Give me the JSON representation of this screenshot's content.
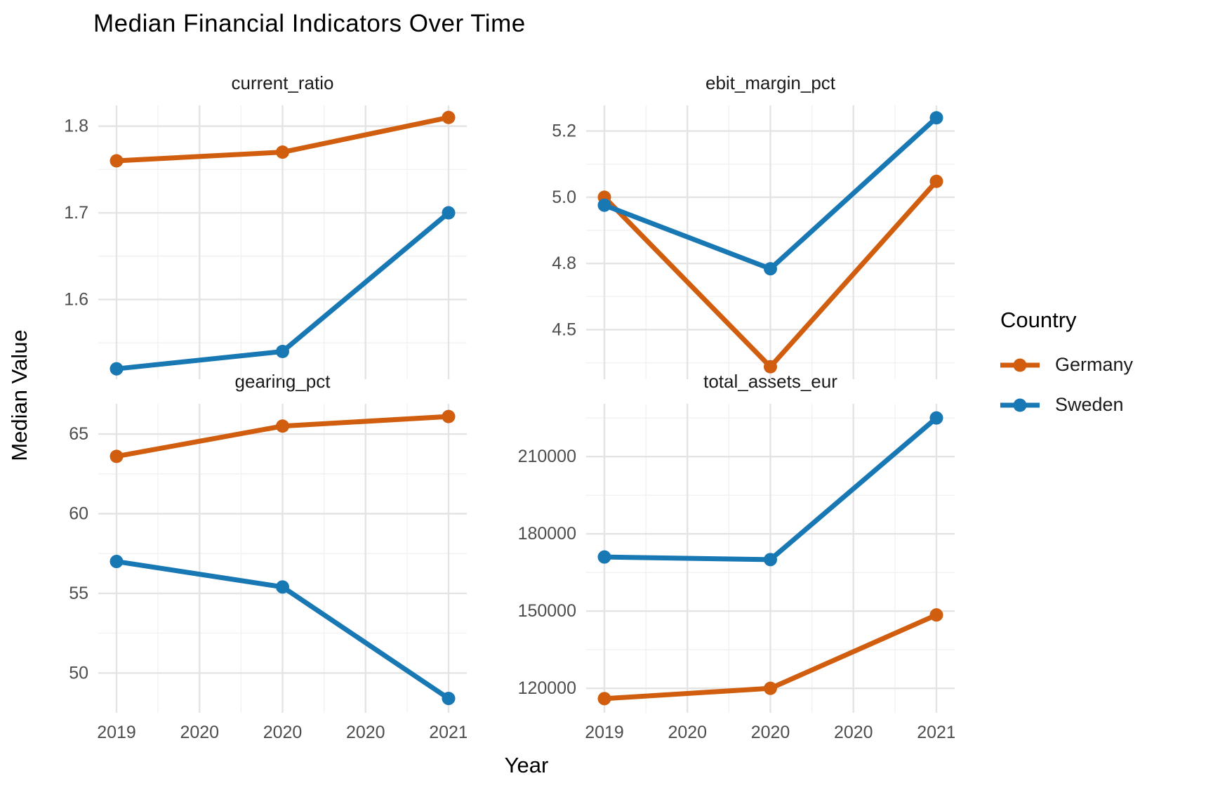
{
  "chart_data": {
    "type": "line",
    "title": "Median Financial Indicators Over Time",
    "xlabel": "Year",
    "ylabel": "Median Value",
    "x": [
      2019,
      2020,
      2021
    ],
    "x_axis": {
      "range": [
        2018.9,
        2021.1
      ],
      "major_breaks": [
        2019,
        2019.5,
        2020,
        2020.5,
        2021
      ],
      "tick_labels": [
        "2019",
        "2020",
        "2020",
        "2020",
        "2021"
      ],
      "minor_breaks": [
        2019.25,
        2019.75,
        2020.25,
        2020.75
      ]
    },
    "legend": {
      "title": "Country",
      "position": "right",
      "entries": [
        "Germany",
        "Sweden"
      ]
    },
    "series_colors": {
      "Germany": "#D05E0E",
      "Sweden": "#1878B4"
    },
    "grid": true,
    "facets": [
      {
        "title": "current_ratio",
        "ylim": [
          1.508,
          1.824
        ],
        "y_ticks": [
          {
            "v": 1.6,
            "label": "1.6"
          },
          {
            "v": 1.7,
            "label": "1.7"
          },
          {
            "v": 1.8,
            "label": "1.8"
          }
        ],
        "y_minor": [
          1.55,
          1.65,
          1.75
        ],
        "series": [
          {
            "name": "Germany",
            "values": [
              1.76,
              1.77,
              1.81
            ]
          },
          {
            "name": "Sweden",
            "values": [
              1.52,
              1.54,
              1.7
            ]
          }
        ]
      },
      {
        "title": "ebit_margin_pct",
        "ylim": [
          4.313,
          5.347
        ],
        "y_ticks": [
          {
            "v": 4.5,
            "label": "4.5"
          },
          {
            "v": 4.75,
            "label": "4.8"
          },
          {
            "v": 5.0,
            "label": "5.0"
          },
          {
            "v": 5.25,
            "label": "5.2"
          }
        ],
        "y_minor": [
          4.375,
          4.625,
          4.875,
          5.125
        ],
        "series": [
          {
            "name": "Germany",
            "values": [
              5.0,
              4.36,
              5.06
            ]
          },
          {
            "name": "Sweden",
            "values": [
              4.97,
              4.73,
              5.3
            ]
          }
        ]
      },
      {
        "title": "gearing_pct",
        "ylim": [
          47.5,
          66.9
        ],
        "y_ticks": [
          {
            "v": 50,
            "label": "50"
          },
          {
            "v": 55,
            "label": "55"
          },
          {
            "v": 60,
            "label": "60"
          },
          {
            "v": 65,
            "label": "65"
          }
        ],
        "y_minor": [
          52.5,
          57.5,
          62.5
        ],
        "series": [
          {
            "name": "Germany",
            "values": [
              63.6,
              65.5,
              66.1
            ]
          },
          {
            "name": "Sweden",
            "values": [
              57.0,
              55.4,
              48.4
            ]
          }
        ]
      },
      {
        "title": "total_assets_eur",
        "ylim": [
          110500,
          230500
        ],
        "y_ticks": [
          {
            "v": 120000,
            "label": "120000"
          },
          {
            "v": 150000,
            "label": "150000"
          },
          {
            "v": 180000,
            "label": "180000"
          },
          {
            "v": 210000,
            "label": "210000"
          }
        ],
        "y_minor": [
          135000,
          165000,
          195000,
          225000
        ],
        "series": [
          {
            "name": "Germany",
            "values": [
              116000,
              120000,
              148500
            ]
          },
          {
            "name": "Sweden",
            "values": [
              171000,
              170000,
              225000
            ]
          }
        ]
      }
    ],
    "style": {
      "grid_major_color": "#E4E4E4",
      "grid_minor_color": "#F1F1F1",
      "tick_label_color": "#4D4D4D",
      "line_width": 7,
      "point_radius": 9.5
    }
  }
}
